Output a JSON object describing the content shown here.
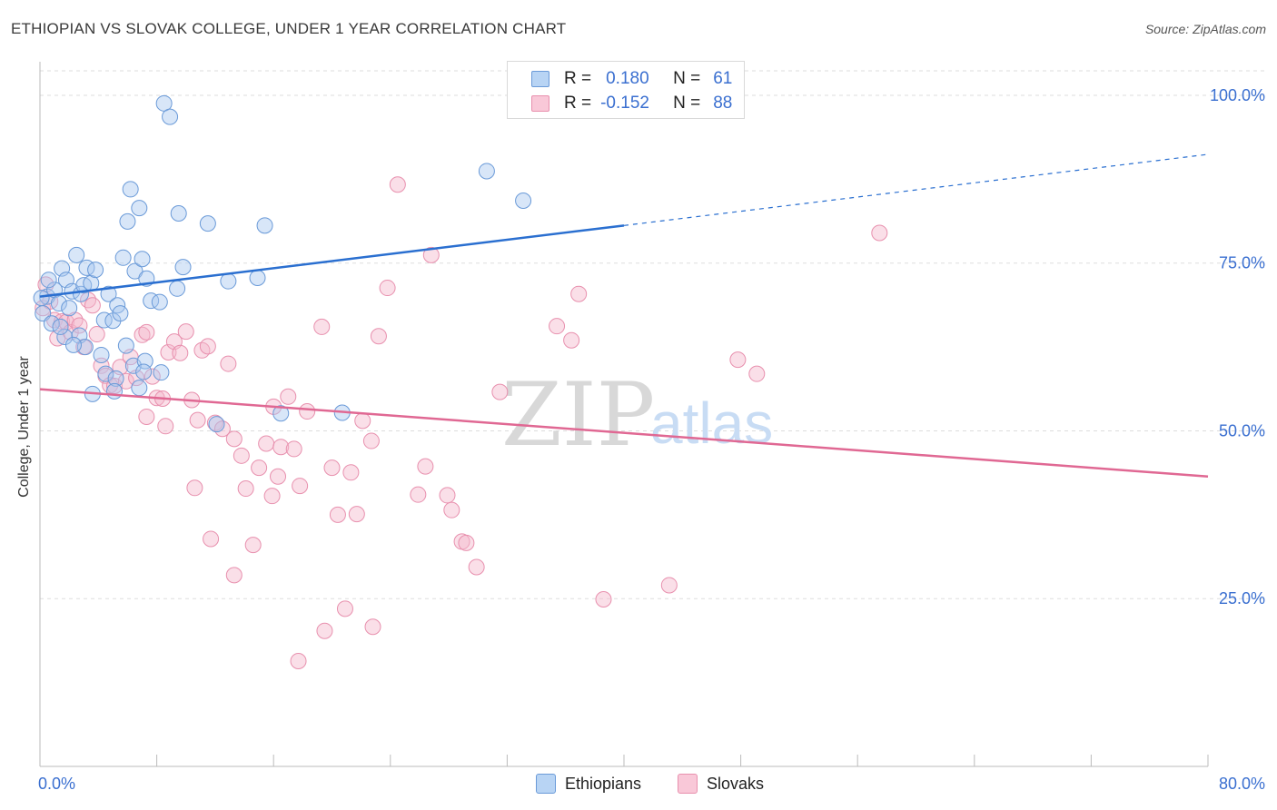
{
  "title": "ETHIOPIAN VS SLOVAK COLLEGE, UNDER 1 YEAR CORRELATION CHART",
  "source": "Source: ZipAtlas.com",
  "watermark": {
    "zip": "ZIP",
    "atlas": "atlas"
  },
  "legend": {
    "rows": [
      {
        "r_label": "R =",
        "r_value": "0.180",
        "n_label": "N =",
        "n_value": "61"
      },
      {
        "r_label": "R =",
        "r_value": "-0.152",
        "n_label": "N =",
        "n_value": "88"
      }
    ]
  },
  "bottom_legend": {
    "items": [
      "Ethiopians",
      "Slovaks"
    ]
  },
  "chart_data": {
    "type": "scatter",
    "title": "ETHIOPIAN VS SLOVAK COLLEGE, UNDER 1 YEAR CORRELATION CHART",
    "xlabel": "",
    "ylabel": "College, Under 1 year",
    "xlim": [
      0,
      80
    ],
    "ylim": [
      0,
      105
    ],
    "x_tick_labels": [
      "0.0%",
      "80.0%"
    ],
    "y_tick_labels": [
      "25.0%",
      "50.0%",
      "75.0%",
      "100.0%"
    ],
    "y_ticks": [
      25,
      50,
      75,
      100
    ],
    "grid": true,
    "colors": {
      "ethiopians_fill": "#a8c8f0",
      "ethiopians_stroke": "#6a9ad8",
      "ethiopians_line": "#2a6fd0",
      "slovaks_fill": "#f5b8cc",
      "slovaks_stroke": "#e890ae",
      "slovaks_line": "#e06893",
      "axis_label": "#3a6fd0"
    },
    "series": [
      {
        "name": "Ethiopians",
        "R": 0.18,
        "N": 61,
        "trend": {
          "x0": 0,
          "y0": 70,
          "x_solid_end": 40,
          "y_solid_end": 80.6,
          "x1": 80,
          "y1": 91.2
        },
        "points": [
          [
            8.5,
            98.8
          ],
          [
            8.9,
            96.8
          ],
          [
            0.2,
            67.5
          ],
          [
            0.5,
            70
          ],
          [
            1.0,
            71
          ],
          [
            1.3,
            69
          ],
          [
            1.5,
            74.2
          ],
          [
            1.8,
            72.5
          ],
          [
            2.0,
            68.3
          ],
          [
            2.2,
            70.8
          ],
          [
            2.5,
            76.2
          ],
          [
            2.8,
            70.4
          ],
          [
            3.0,
            71.7
          ],
          [
            3.2,
            74.3
          ],
          [
            3.5,
            72
          ],
          [
            3.8,
            74
          ],
          [
            4.4,
            66.5
          ],
          [
            4.7,
            70.4
          ],
          [
            5.0,
            66.4
          ],
          [
            5.3,
            68.7
          ],
          [
            5.5,
            67.5
          ],
          [
            5.7,
            75.8
          ],
          [
            6.0,
            81.2
          ],
          [
            6.2,
            86
          ],
          [
            6.5,
            73.8
          ],
          [
            6.8,
            83.2
          ],
          [
            7.0,
            75.6
          ],
          [
            7.3,
            72.7
          ],
          [
            7.6,
            69.4
          ],
          [
            8.2,
            69.2
          ],
          [
            9.4,
            71.2
          ],
          [
            9.5,
            82.4
          ],
          [
            9.8,
            74.4
          ],
          [
            11.5,
            80.9
          ],
          [
            12.9,
            72.3
          ],
          [
            14.9,
            72.8
          ],
          [
            15.4,
            80.6
          ],
          [
            0.8,
            66
          ],
          [
            1.7,
            64
          ],
          [
            2.7,
            64.2
          ],
          [
            3.1,
            62.5
          ],
          [
            4.5,
            58.5
          ],
          [
            5.2,
            57.8
          ],
          [
            6.4,
            59.7
          ],
          [
            7.2,
            60.4
          ],
          [
            8.3,
            58.7
          ],
          [
            3.6,
            55.5
          ],
          [
            5.1,
            55.9
          ],
          [
            7.1,
            58.8
          ],
          [
            12.1,
            51
          ],
          [
            16.5,
            52.6
          ],
          [
            20.7,
            52.7
          ],
          [
            30.6,
            88.7
          ],
          [
            33.1,
            84.3
          ],
          [
            0.1,
            69.8
          ],
          [
            0.6,
            72.5
          ],
          [
            1.4,
            65.5
          ],
          [
            2.3,
            62.8
          ],
          [
            4.2,
            61.3
          ],
          [
            5.9,
            62.7
          ],
          [
            6.8,
            56.4
          ]
        ]
      },
      {
        "name": "Slovaks",
        "R": -0.152,
        "N": 88,
        "trend": {
          "x0": 0,
          "y0": 56.2,
          "x1": 80,
          "y1": 43.2
        },
        "points": [
          [
            0.2,
            68.3
          ],
          [
            0.4,
            71.8
          ],
          [
            0.7,
            69.3
          ],
          [
            1.0,
            66.5
          ],
          [
            1.2,
            63.8
          ],
          [
            1.5,
            66.3
          ],
          [
            1.8,
            66.2
          ],
          [
            2.1,
            64.7
          ],
          [
            2.4,
            66.5
          ],
          [
            2.7,
            65.7
          ],
          [
            3.0,
            62.5
          ],
          [
            3.3,
            69.5
          ],
          [
            3.6,
            68.7
          ],
          [
            3.9,
            64.4
          ],
          [
            4.2,
            59.7
          ],
          [
            4.5,
            58.2
          ],
          [
            4.8,
            56.8
          ],
          [
            5.1,
            56.7
          ],
          [
            5.5,
            59.5
          ],
          [
            5.9,
            57.4
          ],
          [
            6.2,
            61
          ],
          [
            6.6,
            57.9
          ],
          [
            7.0,
            64.3
          ],
          [
            7.3,
            64.7
          ],
          [
            7.7,
            58.1
          ],
          [
            8.0,
            54.9
          ],
          [
            8.4,
            54.8
          ],
          [
            8.8,
            61.7
          ],
          [
            9.2,
            63.3
          ],
          [
            9.6,
            61.6
          ],
          [
            10.0,
            64.8
          ],
          [
            10.4,
            54.6
          ],
          [
            10.8,
            51.6
          ],
          [
            11.1,
            62
          ],
          [
            11.5,
            62.6
          ],
          [
            12.0,
            51.2
          ],
          [
            12.5,
            50.3
          ],
          [
            12.9,
            60
          ],
          [
            13.3,
            48.8
          ],
          [
            13.8,
            46.3
          ],
          [
            14.1,
            41.4
          ],
          [
            14.6,
            33
          ],
          [
            15.0,
            44.5
          ],
          [
            15.5,
            48.1
          ],
          [
            16.0,
            53.6
          ],
          [
            16.5,
            47.6
          ],
          [
            17.0,
            55.1
          ],
          [
            17.4,
            47.3
          ],
          [
            17.8,
            41.8
          ],
          [
            18.3,
            52.9
          ],
          [
            19.3,
            65.5
          ],
          [
            20.0,
            44.5
          ],
          [
            20.4,
            37.5
          ],
          [
            20.9,
            23.5
          ],
          [
            21.3,
            43.8
          ],
          [
            21.7,
            37.6
          ],
          [
            22.1,
            51.5
          ],
          [
            22.7,
            48.5
          ],
          [
            23.2,
            64.1
          ],
          [
            23.8,
            71.3
          ],
          [
            24.5,
            86.7
          ],
          [
            25.9,
            40.5
          ],
          [
            26.4,
            44.7
          ],
          [
            26.8,
            76.2
          ],
          [
            27.9,
            40.4
          ],
          [
            28.2,
            38.2
          ],
          [
            28.9,
            33.5
          ],
          [
            29.2,
            33.3
          ],
          [
            29.9,
            29.7
          ],
          [
            31.5,
            55.8
          ],
          [
            35.4,
            65.6
          ],
          [
            36.4,
            63.5
          ],
          [
            36.9,
            70.4
          ],
          [
            38.6,
            24.9
          ],
          [
            43.1,
            27
          ],
          [
            47.8,
            60.6
          ],
          [
            49.1,
            58.5
          ],
          [
            57.5,
            79.5
          ],
          [
            7.3,
            52.1
          ],
          [
            8.6,
            50.7
          ],
          [
            10.6,
            41.5
          ],
          [
            11.7,
            33.9
          ],
          [
            13.3,
            28.5
          ],
          [
            16.3,
            43.2
          ],
          [
            17.7,
            15.7
          ],
          [
            19.5,
            20.2
          ],
          [
            22.8,
            20.8
          ],
          [
            15.9,
            40.3
          ]
        ]
      }
    ]
  }
}
